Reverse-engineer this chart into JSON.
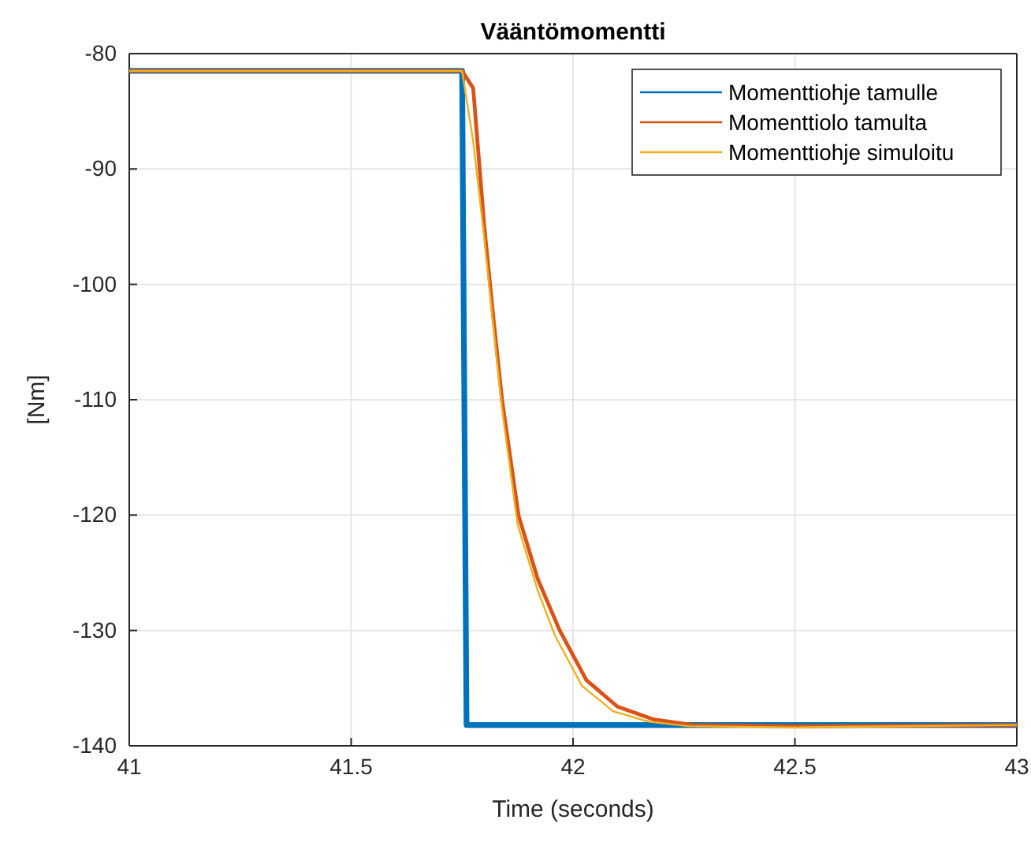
{
  "chart_data": {
    "type": "line",
    "title": "Vääntömomentti",
    "xlabel": "Time (seconds)",
    "ylabel": "[Nm]",
    "xlim": [
      41,
      43
    ],
    "ylim": [
      -140,
      -80
    ],
    "xticks": [
      41,
      41.5,
      42,
      42.5,
      43
    ],
    "yticks": [
      -140,
      -130,
      -120,
      -110,
      -100,
      -90,
      -80
    ],
    "grid": true,
    "legend": "top right",
    "series": [
      {
        "name": "Momenttiohje tamulle",
        "color": "#0072bd",
        "x": [
          41,
          41.75,
          41.76,
          43
        ],
        "values": [
          -81.5,
          -81.5,
          -138.2,
          -138.2
        ]
      },
      {
        "name": "Momenttiolo tamulta",
        "color": "#d95319",
        "x": [
          41,
          41.75,
          41.775,
          41.8,
          41.82,
          41.84,
          41.877,
          41.92,
          41.97,
          42.03,
          42.1,
          42.18,
          42.27,
          42.5,
          43
        ],
        "values": [
          -81.5,
          -81.5,
          -83,
          -95,
          -102.7,
          -110,
          -120,
          -125.5,
          -130,
          -134.3,
          -136.6,
          -137.7,
          -138.2,
          -138.3,
          -138.2
        ]
      },
      {
        "name": "Momenttiohje simuloitu",
        "color": "#edb120",
        "x": [
          41,
          41.75,
          41.775,
          41.8,
          41.82,
          41.84,
          41.875,
          41.92,
          41.96,
          42.02,
          42.09,
          42.17,
          42.26,
          42.5,
          43
        ],
        "values": [
          -81.5,
          -81.5,
          -87.6,
          -96,
          -103.5,
          -110.8,
          -120.8,
          -126.5,
          -130.5,
          -134.8,
          -137,
          -137.9,
          -138.3,
          -138.4,
          -138.2
        ]
      }
    ]
  }
}
